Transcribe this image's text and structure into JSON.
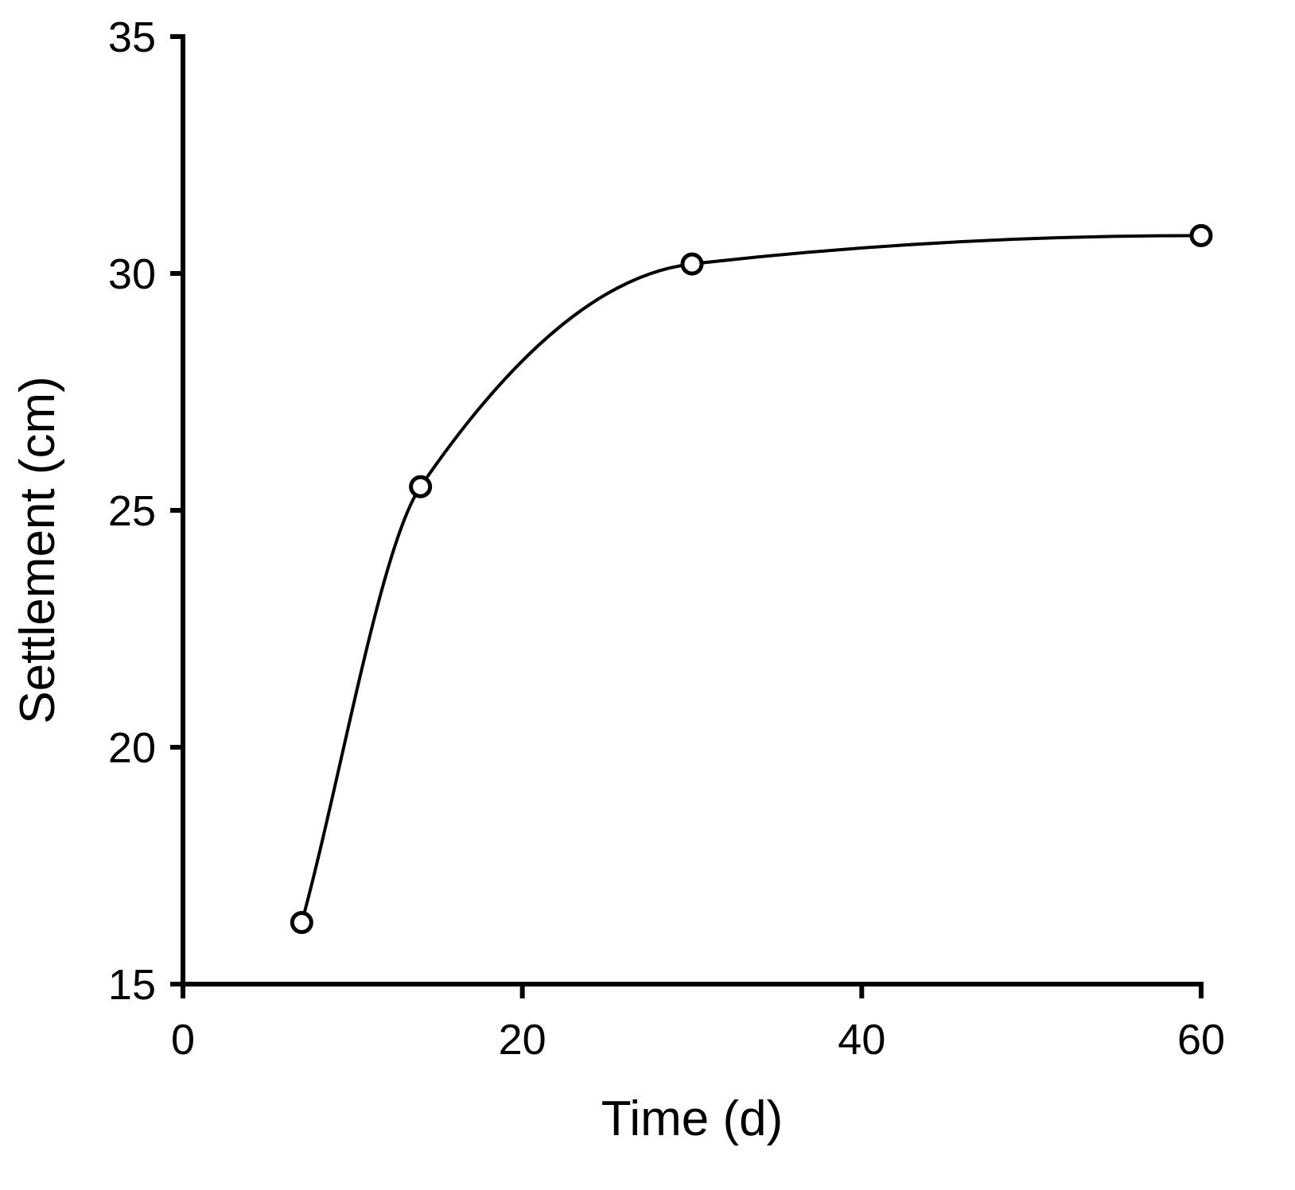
{
  "chart_data": {
    "type": "line",
    "title": "",
    "xlabel": "Time (d)",
    "ylabel": "Settlement (cm)",
    "xlim": [
      0,
      60
    ],
    "ylim": [
      15,
      35
    ],
    "xticks": [
      0,
      20,
      40,
      60
    ],
    "yticks": [
      15,
      20,
      25,
      30,
      35
    ],
    "xtick_labels": [
      "0",
      "20",
      "40",
      "60"
    ],
    "ytick_labels": [
      "15",
      "20",
      "25",
      "30",
      "35"
    ],
    "grid": false,
    "legend": "none",
    "smooth": true,
    "series": [
      {
        "x": [
          7,
          14,
          30,
          60
        ],
        "values": [
          16.3,
          25.5,
          30.2,
          30.8
        ],
        "marker": "open-circle",
        "color": "#000000"
      }
    ]
  }
}
